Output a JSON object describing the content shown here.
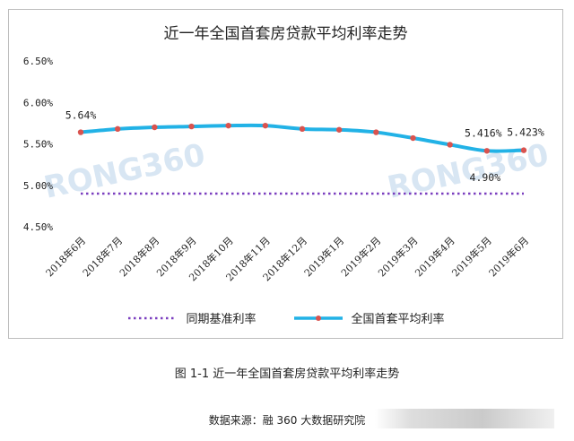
{
  "chart_data": {
    "type": "line",
    "title": "近一年全国首套房贷款平均利率走势",
    "categories": [
      "2018年6月",
      "2018年7月",
      "2018年8月",
      "2018年9月",
      "2018年10月",
      "2018年11月",
      "2018年12月",
      "2019年1月",
      "2019年2月",
      "2019年3月",
      "2019年4月",
      "2019年5月",
      "2019年6月"
    ],
    "yticks": [
      "6.50%",
      "6.00%",
      "5.50%",
      "5.00%",
      "4.50%"
    ],
    "ylim": [
      4.5,
      6.5
    ],
    "series": [
      {
        "name": "全国首套平均利率",
        "values": [
          5.64,
          5.68,
          5.7,
          5.71,
          5.72,
          5.72,
          5.68,
          5.67,
          5.64,
          5.57,
          5.49,
          5.416,
          5.423
        ],
        "color": "#22b2e6",
        "marker_color": "#d9534f"
      },
      {
        "name": "同期基准利率",
        "values": [
          4.9,
          4.9,
          4.9,
          4.9,
          4.9,
          4.9,
          4.9,
          4.9,
          4.9,
          4.9,
          4.9,
          4.9,
          4.9
        ],
        "color": "#7b3fbf"
      }
    ],
    "annotations": [
      {
        "text": "5.64%",
        "category_index": 0,
        "series": 0
      },
      {
        "text": "5.416%",
        "category_index": 11,
        "series": 0
      },
      {
        "text": "5.423%",
        "category_index": 12,
        "series": 0
      },
      {
        "text": "4.90%",
        "category_index": 11,
        "series": 1
      }
    ],
    "legend": [
      "同期基准利率",
      "全国首套平均利率"
    ],
    "legend_position": "bottom",
    "grid": false
  },
  "watermark": "RONG360",
  "caption": "图 1-1  近一年全国首套房贷款平均利率走势",
  "source": "数据来源：融 360 大数据研究院"
}
